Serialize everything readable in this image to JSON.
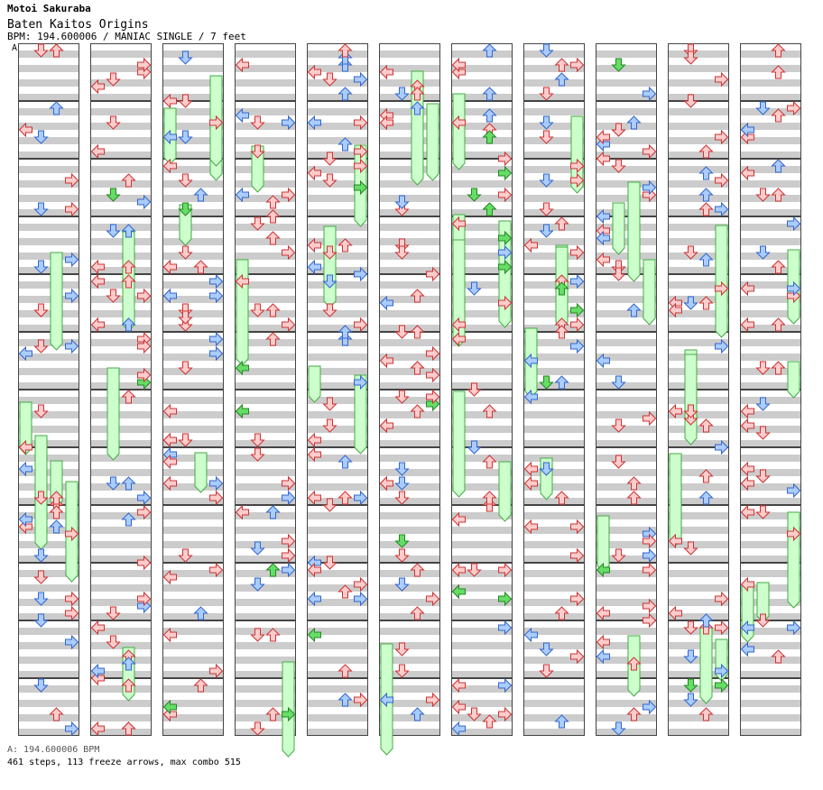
{
  "header": {
    "artist": "Motoi Sakuraba",
    "title": "Baten Kaitos Origins",
    "bpm_line": "BPM: 194.600006 / MANIAC SINGLE / 7 feet",
    "section_marker": "A"
  },
  "footer": {
    "bpm_info": "A: 194.600006 BPM",
    "stats": "461 steps, 113 freeze arrows, max combo 515"
  },
  "chart_data": {
    "type": "other",
    "description_kind": "step-chart",
    "columns": 11,
    "measures_per_column": 12,
    "lanes": [
      "left",
      "down",
      "up",
      "right"
    ],
    "colors": {
      "measure_bg": "#ffffff",
      "stripe": "#cccccc",
      "border": "#444444",
      "red_arrow": "#ffcccc",
      "red_stroke": "#cc3333",
      "blue_arrow": "#aaccff",
      "blue_stroke": "#3366cc",
      "green_arrow": "#66dd66",
      "green_stroke": "#228822",
      "freeze_fill": "#ccffcc",
      "freeze_stroke": "#44aa44"
    }
  }
}
